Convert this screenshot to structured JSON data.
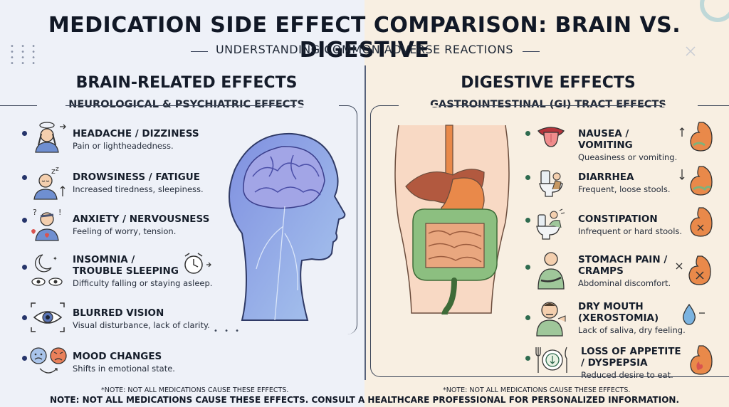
{
  "header": {
    "title": "MEDICATION SIDE EFFECT COMPARISON: BRAIN VS. DIGESTIVE",
    "subtitle": "UNDERSTANDING COMMON ADVERSE REACTIONS"
  },
  "brain": {
    "title": "BRAIN-RELATED EFFECTS",
    "subtitle": "NEUROLOGICAL & PSYCHIATRIC EFFECTS",
    "items": [
      {
        "name": "HEADACHE / DIZZINESS",
        "desc": "Pain or lightheadedness."
      },
      {
        "name": "DROWSINESS / FATIGUE",
        "desc": "Increased tiredness, sleepiness."
      },
      {
        "name": "ANXIETY / NERVOUSNESS",
        "desc": "Feeling of worry, tension."
      },
      {
        "name": "INSOMNIA / TROUBLE SLEEPING",
        "desc": "Difficulty falling or staying asleep."
      },
      {
        "name": "BLURRED VISION",
        "desc": "Visual disturbance, lack of clarity."
      },
      {
        "name": "MOOD CHANGES",
        "desc": "Shifts in emotional state."
      }
    ],
    "footnote": "*NOTE: NOT ALL MEDICATIONS CAUSE THESE EFFECTS."
  },
  "digestive": {
    "title": "DIGESTIVE EFFECTS",
    "subtitle": "GASTROINTESTINAL (GI) TRACT EFFECTS",
    "items": [
      {
        "name": "NAUSEA / VOMITING",
        "desc": "Queasiness or vomiting."
      },
      {
        "name": "DIARRHEA",
        "desc": "Frequent, loose stools."
      },
      {
        "name": "CONSTIPATION",
        "desc": "Infrequent or hard stools."
      },
      {
        "name": "STOMACH PAIN / CRAMPS",
        "desc": "Abdominal discomfort."
      },
      {
        "name": "DRY MOUTH (XEROSTOMIA)",
        "desc": "Lack of saliva, dry feeling."
      },
      {
        "name": "LOSS OF APPETITE / DYSPEPSIA",
        "desc": "Reduced desire to eat."
      }
    ],
    "footnote": "*NOTE: NOT ALL MEDICATIONS CAUSE THESE EFFECTS."
  },
  "footer": {
    "text": "NOTE: NOT ALL MEDICATIONS CAUSE THESE EFFECTS. CONSULT A HEALTHCARE PROFESSIONAL FOR PERSONALIZED INFORMATION."
  },
  "colors": {
    "brain_bullet": "#26356b",
    "digestive_bullet": "#2f6b4f",
    "brain_blue": "#6f84d6",
    "gut_green": "#7fb27a",
    "stomach_orange": "#e9894a"
  },
  "icons": {
    "brain_items": [
      "headache-person-icon",
      "drowsy-person-icon",
      "anxious-person-icon",
      "alarm-clock-eyes-icon",
      "eye-icon",
      "mood-faces-icon"
    ],
    "digestive_items": [
      "tongue-icon",
      "toilet-icon",
      "toilet-strain-icon",
      "stomach-cramp-person-icon",
      "dry-mouth-person-icon",
      "plate-cutlery-icon"
    ]
  }
}
